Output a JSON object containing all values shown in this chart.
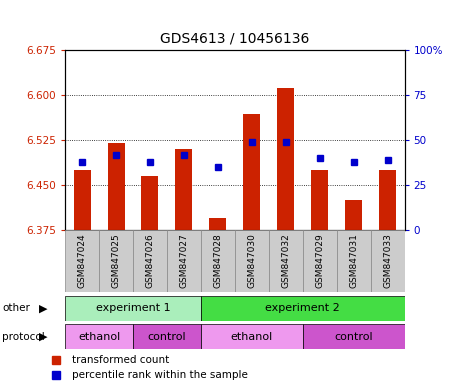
{
  "title": "GDS4613 / 10456136",
  "samples": [
    "GSM847024",
    "GSM847025",
    "GSM847026",
    "GSM847027",
    "GSM847028",
    "GSM847030",
    "GSM847032",
    "GSM847029",
    "GSM847031",
    "GSM847033"
  ],
  "bar_values": [
    6.475,
    6.52,
    6.465,
    6.51,
    6.395,
    6.568,
    6.612,
    6.475,
    6.425,
    6.475
  ],
  "percentile_values": [
    38,
    42,
    38,
    42,
    35,
    49,
    49,
    40,
    38,
    39
  ],
  "ylim_left": [
    6.375,
    6.675
  ],
  "ylim_right": [
    0,
    100
  ],
  "yticks_left": [
    6.375,
    6.45,
    6.525,
    6.6,
    6.675
  ],
  "yticks_right": [
    0,
    25,
    50,
    75,
    100
  ],
  "grid_lines": [
    6.6,
    6.525,
    6.45
  ],
  "bar_color": "#cc2200",
  "dot_color": "#0000cc",
  "bar_bottom": 6.375,
  "experiment_groups": [
    {
      "label": "experiment 1",
      "start": 0,
      "end": 4,
      "color": "#aaeebb"
    },
    {
      "label": "experiment 2",
      "start": 4,
      "end": 10,
      "color": "#44dd44"
    }
  ],
  "protocol_groups": [
    {
      "label": "ethanol",
      "start": 0,
      "end": 2,
      "color": "#ee99ee"
    },
    {
      "label": "control",
      "start": 2,
      "end": 4,
      "color": "#cc55cc"
    },
    {
      "label": "ethanol",
      "start": 4,
      "end": 7,
      "color": "#ee99ee"
    },
    {
      "label": "control",
      "start": 7,
      "end": 10,
      "color": "#cc55cc"
    }
  ],
  "legend_items": [
    {
      "label": "transformed count",
      "color": "#cc2200",
      "marker": "s"
    },
    {
      "label": "percentile rank within the sample",
      "color": "#0000cc",
      "marker": "s"
    }
  ],
  "tick_label_color_left": "#cc2200",
  "tick_label_color_right": "#0000cc",
  "sample_bg_color": "#cccccc",
  "border_color": "#888888"
}
